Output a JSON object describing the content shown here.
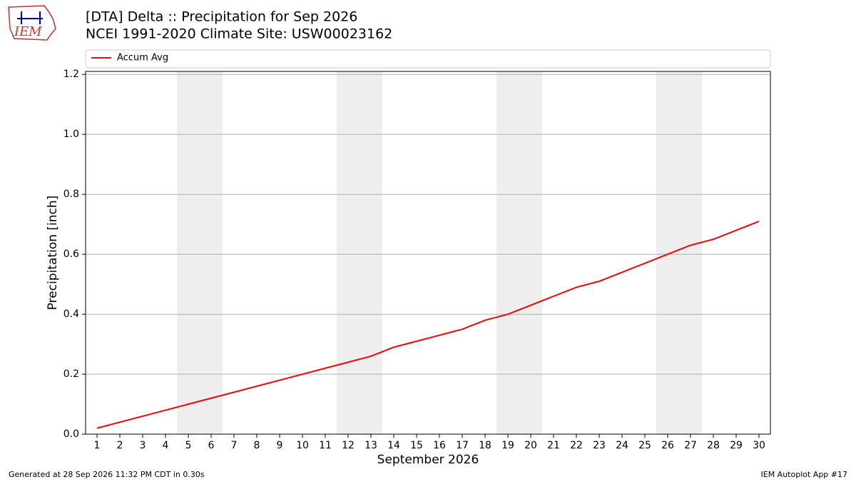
{
  "logo": "IEM",
  "footer": {
    "left": "Generated at 28 Sep 2026 11:32 PM CDT in 0.30s",
    "right": "IEM Autoplot App #17"
  },
  "chart_data": {
    "type": "line",
    "title": "[DTA] Delta :: Precipitation for Sep 2026",
    "subtitle": "NCEI 1991-2020 Climate Site: USW00023162",
    "x_label": "September 2026",
    "y_label": "Precipitation [inch]",
    "x": [
      1,
      2,
      3,
      4,
      5,
      6,
      7,
      8,
      9,
      10,
      11,
      12,
      13,
      14,
      15,
      16,
      17,
      18,
      19,
      20,
      21,
      22,
      23,
      24,
      25,
      26,
      27,
      28,
      29,
      30
    ],
    "series": [
      {
        "name": "Accum Avg",
        "color": "#ff0000",
        "values": [
          0.02,
          0.04,
          0.06,
          0.08,
          0.1,
          0.12,
          0.14,
          0.16,
          0.18,
          0.2,
          0.22,
          0.24,
          0.26,
          0.29,
          0.31,
          0.33,
          0.35,
          0.38,
          0.4,
          0.43,
          0.46,
          0.49,
          0.51,
          0.54,
          0.57,
          0.6,
          0.63,
          0.65,
          0.68,
          0.71
        ]
      }
    ],
    "shaded_ranges": [
      [
        4.5,
        6.5
      ],
      [
        11.5,
        13.5
      ],
      [
        18.5,
        20.5
      ],
      [
        25.5,
        27.5
      ]
    ],
    "shade_color": "#eeeeee",
    "xlim": [
      0.5,
      30.5
    ],
    "xticks": [
      1,
      2,
      3,
      4,
      5,
      6,
      7,
      8,
      9,
      10,
      11,
      12,
      13,
      14,
      15,
      16,
      17,
      18,
      19,
      20,
      21,
      22,
      23,
      24,
      25,
      26,
      27,
      28,
      29,
      30
    ],
    "ylim": [
      0,
      1.21
    ],
    "yticks": [
      {
        "value": 0,
        "label": "0.0"
      },
      0.2,
      0.4,
      0.6,
      0.8,
      {
        "value": 1,
        "label": "1.0"
      },
      1.2
    ],
    "grid": true,
    "legend": "top"
  }
}
